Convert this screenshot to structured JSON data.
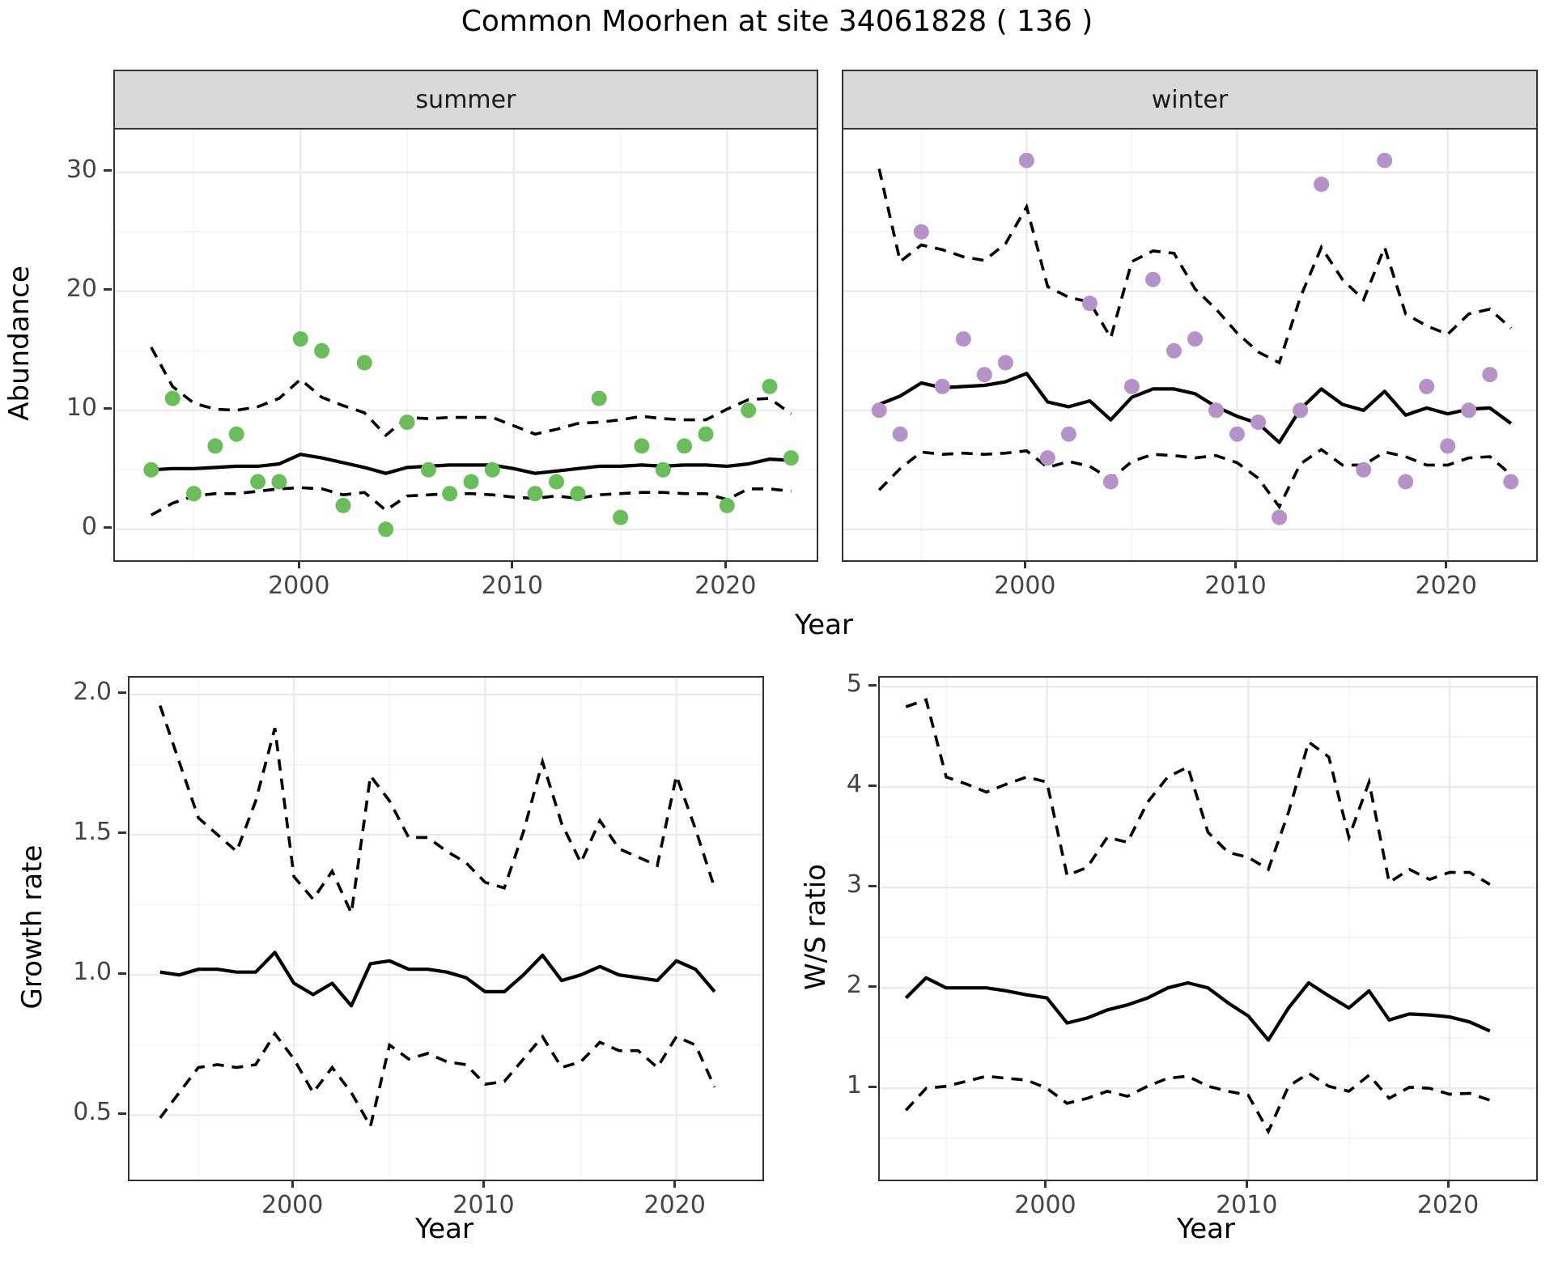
{
  "title": "Common Moorhen at site 34061828 ( 136 )",
  "axes": {
    "abundance_label": "Abundance",
    "year_label": "Year",
    "growth_label": "Growth rate",
    "ws_label": "W/S ratio"
  },
  "facets": [
    {
      "strip": "summer"
    },
    {
      "strip": "winter"
    }
  ],
  "colors": {
    "summer_point": "#69BE59",
    "winter_point": "#B593C8",
    "line": "#000000",
    "strip_bg": "#D9D9D9",
    "major_grid": "#EAEAEA",
    "minor_grid": "#F4F4F4",
    "tick_text": "#444444"
  },
  "chart_data": [
    {
      "id": "abundance-summer",
      "type": "scatter",
      "strip": "summer",
      "xlabel": "Year",
      "ylabel": "Abundance",
      "xlim": [
        1991.3,
        2024.2
      ],
      "ylim": [
        -2.6,
        33.6
      ],
      "xticks": [
        2000,
        2010,
        2020
      ],
      "xtick_labels": [
        "2000",
        "2010",
        "2020"
      ],
      "xminor": [
        1995,
        2005,
        2015
      ],
      "yticks": [
        0,
        10,
        20,
        30
      ],
      "ytick_labels": [
        "0",
        "10",
        "20",
        "30"
      ],
      "yminor": [
        5,
        15,
        25
      ],
      "show_ytick_labels": true,
      "point_color": "#69BE59",
      "points": {
        "years": [
          1993,
          1994,
          1995,
          1996,
          1997,
          1998,
          1999,
          2000,
          2001,
          2002,
          2003,
          2004,
          2005,
          2006,
          2007,
          2008,
          2009,
          2011,
          2012,
          2013,
          2014,
          2015,
          2016,
          2017,
          2018,
          2019,
          2020,
          2021,
          2022,
          2023
        ],
        "values": [
          5,
          11,
          3,
          7,
          8,
          4,
          4,
          16,
          15,
          2,
          14,
          0,
          9,
          5,
          3,
          4,
          5,
          3,
          4,
          3,
          11,
          1,
          7,
          5,
          7,
          8,
          2,
          10,
          12,
          6
        ]
      },
      "mean": {
        "years": [
          1993,
          1994,
          1995,
          1996,
          1997,
          1998,
          1999,
          2000,
          2001,
          2002,
          2003,
          2004,
          2005,
          2006,
          2007,
          2008,
          2009,
          2010,
          2011,
          2012,
          2013,
          2014,
          2015,
          2016,
          2017,
          2018,
          2019,
          2020,
          2021,
          2022,
          2023
        ],
        "values": [
          5.0,
          5.1,
          5.1,
          5.2,
          5.3,
          5.3,
          5.5,
          6.3,
          6.0,
          5.6,
          5.2,
          4.7,
          5.2,
          5.3,
          5.4,
          5.4,
          5.4,
          5.1,
          4.7,
          4.9,
          5.1,
          5.3,
          5.3,
          5.4,
          5.3,
          5.4,
          5.4,
          5.3,
          5.5,
          5.9,
          5.8
        ]
      },
      "upper": {
        "years": [
          1993,
          1994,
          1995,
          1996,
          1997,
          1998,
          1999,
          2000,
          2001,
          2002,
          2003,
          2004,
          2005,
          2006,
          2007,
          2008,
          2009,
          2010,
          2011,
          2012,
          2013,
          2014,
          2015,
          2016,
          2017,
          2018,
          2019,
          2020,
          2021,
          2022,
          2023
        ],
        "values": [
          15.3,
          12.0,
          10.6,
          10.1,
          10.0,
          10.3,
          11.0,
          12.6,
          11.1,
          10.4,
          9.8,
          7.9,
          9.4,
          9.3,
          9.4,
          9.4,
          9.4,
          8.7,
          8.0,
          8.4,
          8.9,
          9.0,
          9.2,
          9.5,
          9.3,
          9.2,
          9.2,
          10.1,
          10.9,
          11.0,
          9.7
        ]
      },
      "lower": {
        "years": [
          1993,
          1994,
          1995,
          1996,
          1997,
          1998,
          1999,
          2000,
          2001,
          2002,
          2003,
          2004,
          2005,
          2006,
          2007,
          2008,
          2009,
          2010,
          2011,
          2012,
          2013,
          2014,
          2015,
          2016,
          2017,
          2018,
          2019,
          2020,
          2021,
          2022,
          2023
        ],
        "values": [
          1.2,
          2.2,
          2.8,
          3.0,
          3.0,
          3.2,
          3.4,
          3.5,
          3.4,
          2.9,
          3.1,
          1.6,
          2.8,
          2.9,
          3.0,
          3.0,
          2.9,
          2.7,
          2.6,
          2.8,
          2.6,
          2.9,
          3.0,
          3.1,
          3.1,
          3.0,
          3.0,
          2.5,
          3.4,
          3.4,
          3.2
        ]
      }
    },
    {
      "id": "abundance-winter",
      "type": "scatter",
      "strip": "winter",
      "xlabel": "Year",
      "ylabel": "Abundance",
      "xlim": [
        1991.3,
        2024.2
      ],
      "ylim": [
        -2.6,
        33.6
      ],
      "xticks": [
        2000,
        2010,
        2020
      ],
      "xtick_labels": [
        "2000",
        "2010",
        "2020"
      ],
      "xminor": [
        1995,
        2005,
        2015
      ],
      "yticks": [
        0,
        10,
        20,
        30
      ],
      "ytick_labels": [
        "0",
        "10",
        "20",
        "30"
      ],
      "yminor": [
        5,
        15,
        25
      ],
      "show_ytick_labels": false,
      "point_color": "#B593C8",
      "points": {
        "years": [
          1993,
          1994,
          1995,
          1996,
          1997,
          1998,
          1999,
          2000,
          2001,
          2002,
          2003,
          2004,
          2005,
          2006,
          2007,
          2008,
          2009,
          2010,
          2011,
          2012,
          2013,
          2014,
          2016,
          2017,
          2018,
          2019,
          2020,
          2021,
          2022,
          2023
        ],
        "values": [
          10,
          8,
          25,
          12,
          16,
          13,
          14,
          31,
          6,
          8,
          19,
          4,
          12,
          21,
          15,
          16,
          10,
          8,
          9,
          1,
          10,
          29,
          5,
          31,
          4,
          12,
          7,
          10,
          13,
          4
        ]
      },
      "mean": {
        "years": [
          1993,
          1994,
          1995,
          1996,
          1997,
          1998,
          1999,
          2000,
          2001,
          2002,
          2003,
          2004,
          2005,
          2006,
          2007,
          2008,
          2009,
          2010,
          2011,
          2012,
          2013,
          2014,
          2015,
          2016,
          2017,
          2018,
          2019,
          2020,
          2021,
          2022,
          2023
        ],
        "values": [
          10.5,
          11.2,
          12.3,
          11.9,
          12.0,
          12.1,
          12.4,
          13.1,
          10.7,
          10.3,
          10.8,
          9.2,
          11.1,
          11.8,
          11.8,
          11.4,
          10.3,
          9.5,
          8.9,
          7.3,
          10.1,
          11.8,
          10.5,
          10.0,
          11.6,
          9.6,
          10.2,
          9.7,
          10.1,
          10.2,
          8.9
        ]
      },
      "upper": {
        "years": [
          1993,
          1994,
          1995,
          1996,
          1997,
          1998,
          1999,
          2000,
          2001,
          2002,
          2003,
          2004,
          2005,
          2006,
          2007,
          2008,
          2009,
          2010,
          2011,
          2012,
          2013,
          2014,
          2015,
          2016,
          2017,
          2018,
          2019,
          2020,
          2021,
          2022,
          2023
        ],
        "values": [
          30.3,
          22.5,
          23.9,
          23.5,
          22.9,
          22.6,
          24.0,
          27.1,
          20.4,
          19.5,
          19.1,
          16.1,
          22.5,
          23.4,
          23.2,
          20.2,
          18.5,
          16.5,
          14.9,
          14.0,
          19.5,
          23.7,
          21.0,
          19.3,
          23.7,
          18.1,
          17.1,
          16.4,
          18.1,
          18.5,
          16.9
        ]
      },
      "lower": {
        "years": [
          1993,
          1994,
          1995,
          1996,
          1997,
          1998,
          1999,
          2000,
          2001,
          2002,
          2003,
          2004,
          2005,
          2006,
          2007,
          2008,
          2009,
          2010,
          2011,
          2012,
          2013,
          2014,
          2015,
          2016,
          2017,
          2018,
          2019,
          2020,
          2021,
          2022,
          2023
        ],
        "values": [
          3.3,
          5.1,
          6.5,
          6.3,
          6.4,
          6.3,
          6.4,
          6.6,
          5.2,
          5.7,
          5.3,
          4.2,
          5.7,
          6.3,
          6.2,
          6.0,
          6.2,
          5.6,
          4.3,
          1.9,
          5.5,
          6.7,
          5.4,
          5.4,
          6.5,
          6.1,
          5.4,
          5.4,
          6.0,
          6.1,
          4.6
        ]
      }
    },
    {
      "id": "growth-rate",
      "type": "line",
      "xlabel": "Year",
      "ylabel": "Growth rate",
      "xlim": [
        1991.4,
        2024.5
      ],
      "ylim": [
        0.27,
        2.06
      ],
      "xticks": [
        2000,
        2010,
        2020
      ],
      "xtick_labels": [
        "2000",
        "2010",
        "2020"
      ],
      "xminor": [
        1995,
        2005,
        2015
      ],
      "yticks": [
        0.5,
        1.0,
        1.5,
        2.0
      ],
      "ytick_labels": [
        "0.5",
        "1.0",
        "1.5",
        "2.0"
      ],
      "yminor": [
        0.75,
        1.25,
        1.75
      ],
      "show_ytick_labels": true,
      "mean": {
        "years": [
          1993,
          1994,
          1995,
          1996,
          1997,
          1998,
          1999,
          2000,
          2001,
          2002,
          2003,
          2004,
          2005,
          2006,
          2007,
          2008,
          2009,
          2010,
          2011,
          2012,
          2013,
          2014,
          2015,
          2016,
          2017,
          2018,
          2019,
          2020,
          2021,
          2022
        ],
        "values": [
          1.01,
          1.0,
          1.02,
          1.02,
          1.01,
          1.01,
          1.08,
          0.97,
          0.93,
          0.97,
          0.89,
          1.04,
          1.05,
          1.02,
          1.02,
          1.01,
          0.99,
          0.94,
          0.94,
          1.0,
          1.07,
          0.98,
          1.0,
          1.03,
          1.0,
          0.99,
          0.98,
          1.05,
          1.02,
          0.94
        ]
      },
      "upper": {
        "years": [
          1993,
          1994,
          1995,
          1996,
          1997,
          1998,
          1999,
          2000,
          2001,
          2002,
          2003,
          2004,
          2005,
          2006,
          2007,
          2008,
          2009,
          2010,
          2011,
          2012,
          2013,
          2014,
          2015,
          2016,
          2017,
          2018,
          2019,
          2020,
          2021,
          2022
        ],
        "values": [
          1.96,
          1.76,
          1.56,
          1.5,
          1.44,
          1.62,
          1.88,
          1.35,
          1.27,
          1.37,
          1.22,
          1.71,
          1.62,
          1.49,
          1.49,
          1.44,
          1.4,
          1.33,
          1.31,
          1.51,
          1.76,
          1.54,
          1.4,
          1.55,
          1.45,
          1.42,
          1.39,
          1.71,
          1.52,
          1.31
        ]
      },
      "lower": {
        "years": [
          1993,
          1994,
          1995,
          1996,
          1997,
          1998,
          1999,
          2000,
          2001,
          2002,
          2003,
          2004,
          2005,
          2006,
          2007,
          2008,
          2009,
          2010,
          2011,
          2012,
          2013,
          2014,
          2015,
          2016,
          2017,
          2018,
          2019,
          2020,
          2021,
          2022
        ],
        "values": [
          0.49,
          0.58,
          0.67,
          0.68,
          0.67,
          0.68,
          0.79,
          0.7,
          0.58,
          0.67,
          0.58,
          0.46,
          0.75,
          0.7,
          0.72,
          0.69,
          0.68,
          0.61,
          0.62,
          0.7,
          0.78,
          0.67,
          0.69,
          0.76,
          0.73,
          0.73,
          0.67,
          0.78,
          0.75,
          0.6
        ]
      }
    },
    {
      "id": "ws-ratio",
      "type": "line",
      "xlabel": "Year",
      "ylabel": "W/S ratio",
      "xlim": [
        1991.7,
        2024.3
      ],
      "ylim": [
        0.09,
        5.09
      ],
      "xticks": [
        2000,
        2010,
        2020
      ],
      "xtick_labels": [
        "2000",
        "2010",
        "2020"
      ],
      "xminor": [
        1995,
        2005,
        2015
      ],
      "yticks": [
        1,
        2,
        3,
        4,
        5
      ],
      "ytick_labels": [
        "1",
        "2",
        "3",
        "4",
        "5"
      ],
      "yminor": [
        0.5,
        1.5,
        2.5,
        3.5,
        4.5
      ],
      "show_ytick_labels": true,
      "mean": {
        "years": [
          1993,
          1994,
          1995,
          1996,
          1997,
          1998,
          1999,
          2000,
          2001,
          2002,
          2003,
          2004,
          2005,
          2006,
          2007,
          2008,
          2009,
          2010,
          2011,
          2012,
          2013,
          2014,
          2015,
          2016,
          2017,
          2018,
          2019,
          2020,
          2021,
          2022
        ],
        "values": [
          1.9,
          2.1,
          2.0,
          2.0,
          2.0,
          1.97,
          1.93,
          1.9,
          1.65,
          1.7,
          1.78,
          1.83,
          1.9,
          2.0,
          2.05,
          2.0,
          1.85,
          1.72,
          1.48,
          1.8,
          2.05,
          1.92,
          1.8,
          1.97,
          1.68,
          1.74,
          1.73,
          1.71,
          1.66,
          1.57
        ]
      },
      "upper": {
        "years": [
          1993,
          1994,
          1995,
          1996,
          1997,
          1998,
          1999,
          2000,
          2001,
          2002,
          2003,
          2004,
          2005,
          2006,
          2007,
          2008,
          2009,
          2010,
          2011,
          2012,
          2013,
          2014,
          2015,
          2016,
          2017,
          2018,
          2019,
          2020,
          2021,
          2022
        ],
        "values": [
          4.8,
          4.87,
          4.1,
          4.03,
          3.95,
          4.03,
          4.1,
          4.05,
          3.12,
          3.2,
          3.5,
          3.45,
          3.85,
          4.1,
          4.2,
          3.55,
          3.35,
          3.3,
          3.18,
          3.75,
          4.45,
          4.3,
          3.5,
          4.05,
          3.05,
          3.18,
          3.08,
          3.15,
          3.15,
          3.03
        ]
      },
      "lower": {
        "years": [
          1993,
          1994,
          1995,
          1996,
          1997,
          1998,
          1999,
          2000,
          2001,
          2002,
          2003,
          2004,
          2005,
          2006,
          2007,
          2008,
          2009,
          2010,
          2011,
          2012,
          2013,
          2014,
          2015,
          2016,
          2017,
          2018,
          2019,
          2020,
          2021,
          2022
        ],
        "values": [
          0.78,
          1.0,
          1.02,
          1.07,
          1.12,
          1.1,
          1.08,
          1.0,
          0.85,
          0.9,
          0.97,
          0.92,
          1.02,
          1.1,
          1.12,
          1.02,
          0.97,
          0.93,
          0.57,
          1.02,
          1.15,
          1.02,
          0.97,
          1.13,
          0.9,
          1.01,
          1.0,
          0.94,
          0.95,
          0.88
        ]
      }
    }
  ]
}
